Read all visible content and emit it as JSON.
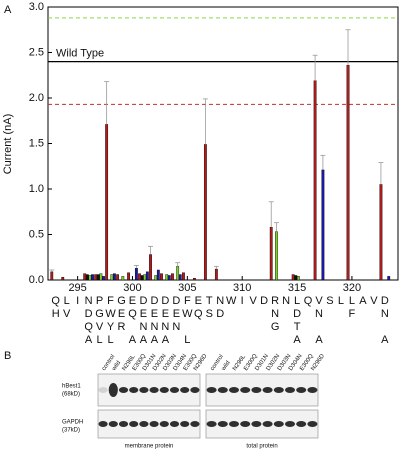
{
  "chart_data": {
    "type": "bar",
    "panel_label": "A",
    "ylabel": "Current (nA)",
    "x": [
      293,
      294,
      295,
      296,
      297,
      298,
      299,
      300,
      301,
      302,
      303,
      304,
      305,
      306,
      307,
      308,
      309,
      310,
      311,
      312,
      313,
      314,
      315,
      316,
      317,
      318,
      319,
      320,
      321,
      322,
      323
    ],
    "xlim": [
      292.3,
      324.2
    ],
    "xticks": [
      295,
      300,
      305,
      310,
      315,
      320
    ],
    "ylim": [
      0,
      3
    ],
    "yticks": [
      {
        "value": 0,
        "label": "0.0"
      },
      {
        "value": 0.5,
        "label": "0.5"
      },
      {
        "value": 1,
        "label": "1.0"
      },
      {
        "value": 1.5,
        "label": "1.5"
      },
      {
        "value": 2,
        "label": "2.0"
      },
      {
        "value": 2.5,
        "label": "2.5"
      },
      {
        "value": 3,
        "label": "3.0"
      }
    ],
    "series": [
      {
        "color": "#b01c1c",
        "values": [
          0.09,
          0.03,
          null,
          0.07,
          0.06,
          1.71,
          0.06,
          0.08,
          0.07,
          0.28,
          0.07,
          0.07,
          0.08,
          0.02,
          1.49,
          0.12,
          null,
          null,
          null,
          null,
          0.58,
          null,
          0.06,
          null,
          2.19,
          null,
          null,
          2.36,
          null,
          null,
          1.05
        ],
        "errors": [
          0.02,
          null,
          null,
          null,
          null,
          0.47,
          null,
          null,
          null,
          0.09,
          null,
          null,
          null,
          null,
          0.5,
          0.03,
          null,
          null,
          null,
          null,
          0.28,
          null,
          null,
          null,
          0.28,
          null,
          null,
          0.39,
          null,
          null,
          0.24
        ]
      },
      {
        "color": "#111111",
        "values": [
          null,
          null,
          null,
          0.06,
          0.06,
          null,
          null,
          null,
          0.05,
          null,
          null,
          null,
          null,
          null,
          null,
          null,
          null,
          null,
          null,
          null,
          null,
          null,
          0.05,
          null,
          null,
          null,
          null,
          null,
          null,
          null,
          null
        ],
        "errors": [
          null,
          null,
          null,
          null,
          null,
          null,
          null,
          null,
          null,
          null,
          null,
          null,
          null,
          null,
          null,
          null,
          null,
          null,
          null,
          null,
          null,
          null,
          null,
          null,
          null,
          null,
          null,
          null,
          null,
          null,
          null
        ]
      },
      {
        "color": "#7ccf2a",
        "values": [
          null,
          null,
          null,
          0.05,
          0.07,
          0.06,
          0.04,
          null,
          0.06,
          0.05,
          0.06,
          0.15,
          null,
          null,
          null,
          null,
          null,
          null,
          null,
          null,
          0.53,
          null,
          0.04,
          null,
          null,
          null,
          null,
          null,
          null,
          null,
          null
        ],
        "errors": [
          null,
          null,
          null,
          null,
          null,
          null,
          null,
          null,
          null,
          null,
          null,
          0.04,
          null,
          null,
          null,
          null,
          null,
          null,
          null,
          null,
          0.1,
          null,
          null,
          null,
          null,
          null,
          null,
          null,
          null,
          null,
          null
        ]
      },
      {
        "color": "#1a1aa8",
        "values": [
          null,
          null,
          null,
          0.06,
          0.04,
          0.07,
          null,
          0.13,
          0.09,
          0.11,
          0.05,
          0.06,
          null,
          null,
          null,
          null,
          null,
          null,
          null,
          null,
          null,
          null,
          null,
          null,
          1.21,
          null,
          null,
          null,
          null,
          null,
          0.04
        ],
        "errors": [
          null,
          null,
          null,
          null,
          null,
          null,
          null,
          0.03,
          null,
          null,
          null,
          null,
          null,
          null,
          null,
          null,
          null,
          null,
          null,
          null,
          null,
          null,
          null,
          null,
          0.16,
          null,
          null,
          null,
          null,
          null,
          null
        ]
      }
    ],
    "reference_lines": [
      {
        "value": 2.4,
        "color": "#000000",
        "style": "solid",
        "label": "Wild Type"
      },
      {
        "value": 2.88,
        "color": "#7ccf2a",
        "style": "dashed"
      },
      {
        "value": 1.93,
        "color": "#c0302a",
        "style": "dashed"
      }
    ],
    "sequence": [
      "Q",
      "L",
      "I",
      "N",
      "P",
      "F",
      "G",
      "E",
      "D",
      "D",
      "D",
      "D",
      "F",
      "E",
      "T",
      "N",
      "W",
      "I",
      "V",
      "D",
      "R",
      "N",
      "L",
      "Q",
      "V",
      "S",
      "L",
      "L",
      "A",
      "V",
      "D"
    ],
    "mutation_rows": [
      {
        "color": "#c0302a",
        "letters": [
          "H",
          "V",
          null,
          "D",
          "G",
          "W",
          "E",
          "Q",
          "E",
          "E",
          "E",
          "E",
          "W",
          "Q",
          "S",
          "D",
          null,
          null,
          null,
          null,
          "N",
          null,
          "D",
          null,
          "N",
          null,
          null,
          "F",
          null,
          null,
          "N"
        ]
      },
      {
        "color": "#7ccf2a",
        "letters": [
          null,
          null,
          null,
          "Q",
          "V",
          "Y",
          "R",
          null,
          "N",
          "N",
          "N",
          "N",
          null,
          null,
          null,
          null,
          null,
          null,
          null,
          null,
          "G",
          null,
          "T",
          null,
          null,
          null,
          null,
          null,
          null,
          null,
          null
        ]
      },
      {
        "color": "#1a1aa8",
        "letters": [
          null,
          null,
          null,
          "A",
          "L",
          "L",
          null,
          "A",
          "A",
          "A",
          "A",
          null,
          "L",
          null,
          null,
          null,
          null,
          null,
          null,
          null,
          null,
          null,
          "A",
          null,
          "A",
          null,
          null,
          null,
          null,
          null,
          "A"
        ]
      }
    ]
  },
  "blot": {
    "panel_label": "B",
    "left_lanes": [
      "control",
      "wild",
      "N296L",
      "E300Q",
      "D301N",
      "D302N",
      "D303N",
      "D304N",
      "E300Q",
      "N296D"
    ],
    "right_lanes": [
      "control",
      "wild",
      "N296L",
      "E300Q",
      "D301N",
      "D302N",
      "D303N",
      "D304N",
      "E300Q",
      "N296D"
    ],
    "rows": [
      {
        "name": "hBest1",
        "size": "(68kD)"
      },
      {
        "name": "GAPDH",
        "size": "(37kD)"
      }
    ],
    "captions": [
      "membrane protein",
      "total protein"
    ]
  }
}
